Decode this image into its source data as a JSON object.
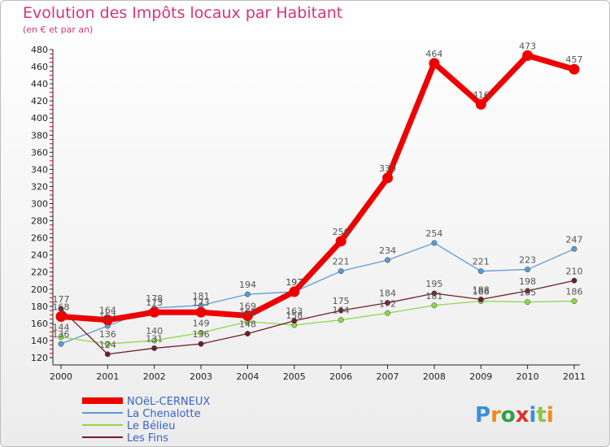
{
  "chart_data": {
    "type": "line",
    "title": "Evolution des Impôts locaux par Habitant",
    "subtitle": "(en € et par an)",
    "x": [
      "2000",
      "2001",
      "2002",
      "2003",
      "2004",
      "2005",
      "2006",
      "2007",
      "2008",
      "2009",
      "2010",
      "2011"
    ],
    "ylim": [
      120,
      480
    ],
    "yticks": [
      120,
      140,
      160,
      180,
      200,
      220,
      240,
      260,
      280,
      300,
      320,
      340,
      360,
      380,
      400,
      420,
      440,
      460,
      480
    ],
    "grid": false,
    "legend_position": "bottom-left",
    "series": [
      {
        "name": "La Chenalotte",
        "color": "#5b9bd5",
        "values": [
          136,
          157,
          178,
          181,
          194,
          197,
          221,
          234,
          254,
          221,
          223,
          247
        ],
        "labels": [
          "136",
          "157",
          "178",
          "181",
          "194",
          "197",
          "221",
          "234",
          "254",
          "221",
          "223",
          "247"
        ]
      },
      {
        "name": "Le Bélieu",
        "color": "#8fd84a",
        "values": [
          144,
          136,
          140,
          149,
          162,
          158,
          164,
          172,
          181,
          186,
          185,
          186
        ],
        "labels": [
          "144",
          "136",
          "140",
          "149",
          "162",
          "158",
          "164",
          "172",
          "181",
          "186",
          "185",
          "186"
        ]
      },
      {
        "name": "Les Fins",
        "color": "#6e1f2c",
        "values": [
          177,
          124,
          131,
          136,
          148,
          163,
          175,
          184,
          195,
          188,
          198,
          210
        ],
        "labels": [
          "177",
          "124",
          "131",
          "136",
          "148",
          "163",
          "175",
          "184",
          "195",
          "188",
          "198",
          "210"
        ]
      },
      {
        "name": "NOëL-CERNEUX",
        "color": "#ee0000",
        "values": [
          168,
          164,
          173,
          173,
          169,
          197,
          256,
          330,
          464,
          416,
          473,
          457
        ],
        "labels": [
          "168",
          "164",
          "173",
          "173",
          "169",
          "197",
          "256",
          "330",
          "464",
          "416",
          "473",
          "457"
        ]
      }
    ],
    "legend": [
      {
        "name": "NOëL-CERNEUX",
        "color": "#ee0000"
      },
      {
        "name": "La Chenalotte",
        "color": "#5b9bd5"
      },
      {
        "name": "Le Bélieu",
        "color": "#8fd84a"
      },
      {
        "name": "Les Fins",
        "color": "#6e1f2c"
      }
    ]
  },
  "logo": {
    "text": "Proxiti"
  }
}
